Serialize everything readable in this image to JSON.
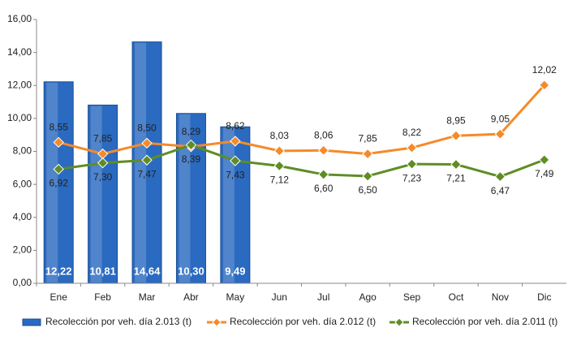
{
  "chart_data": {
    "type": "bar",
    "categories": [
      "Ene",
      "Feb",
      "Mar",
      "Abr",
      "May",
      "Jun",
      "Jul",
      "Ago",
      "Sep",
      "Oct",
      "Nov",
      "Dic"
    ],
    "series": [
      {
        "name": "Recolección por veh. día 2.013 (t)",
        "type": "bar",
        "color": "#2a6ac0",
        "values": [
          12.22,
          10.81,
          14.64,
          10.3,
          9.49,
          null,
          null,
          null,
          null,
          null,
          null,
          null
        ],
        "value_labels": [
          "12,22",
          "10,81",
          "14,64",
          "10,30",
          "9,49",
          null,
          null,
          null,
          null,
          null,
          null,
          null
        ]
      },
      {
        "name": "Recolección por veh. día 2.012 (t)",
        "type": "line",
        "color": "#f58a2a",
        "values": [
          8.55,
          7.85,
          8.5,
          8.29,
          8.62,
          8.03,
          8.06,
          7.85,
          8.22,
          8.95,
          9.05,
          12.02
        ],
        "value_labels": [
          "8,55",
          "7,85",
          "8,50",
          "8,29",
          "8,62",
          "8,03",
          "8,06",
          "7,85",
          "8,22",
          "8,95",
          "9,05",
          "12,02"
        ]
      },
      {
        "name": "Recolección por veh. día 2.011 (t)",
        "type": "line",
        "color": "#5f8d24",
        "values": [
          6.92,
          7.3,
          7.47,
          8.39,
          7.43,
          7.12,
          6.6,
          6.5,
          7.23,
          7.21,
          6.47,
          7.49
        ],
        "value_labels": [
          "6,92",
          "7,30",
          "7,47",
          "8,39",
          "7,43",
          "7,12",
          "6,60",
          "6,50",
          "7,23",
          "7,21",
          "6,47",
          "7,49"
        ]
      }
    ],
    "ylim": [
      0,
      16
    ],
    "yticks": [
      {
        "value": 0,
        "label": "0,00"
      },
      {
        "value": 2,
        "label": "2,00"
      },
      {
        "value": 4,
        "label": "4,00"
      },
      {
        "value": 6,
        "label": "6,00"
      },
      {
        "value": 8,
        "label": "8,00"
      },
      {
        "value": 10,
        "label": "10,00"
      },
      {
        "value": 12,
        "label": "12,00"
      },
      {
        "value": 14,
        "label": "14,00"
      },
      {
        "value": 16,
        "label": "16,00"
      }
    ],
    "grid": false,
    "legend": "bottom"
  }
}
